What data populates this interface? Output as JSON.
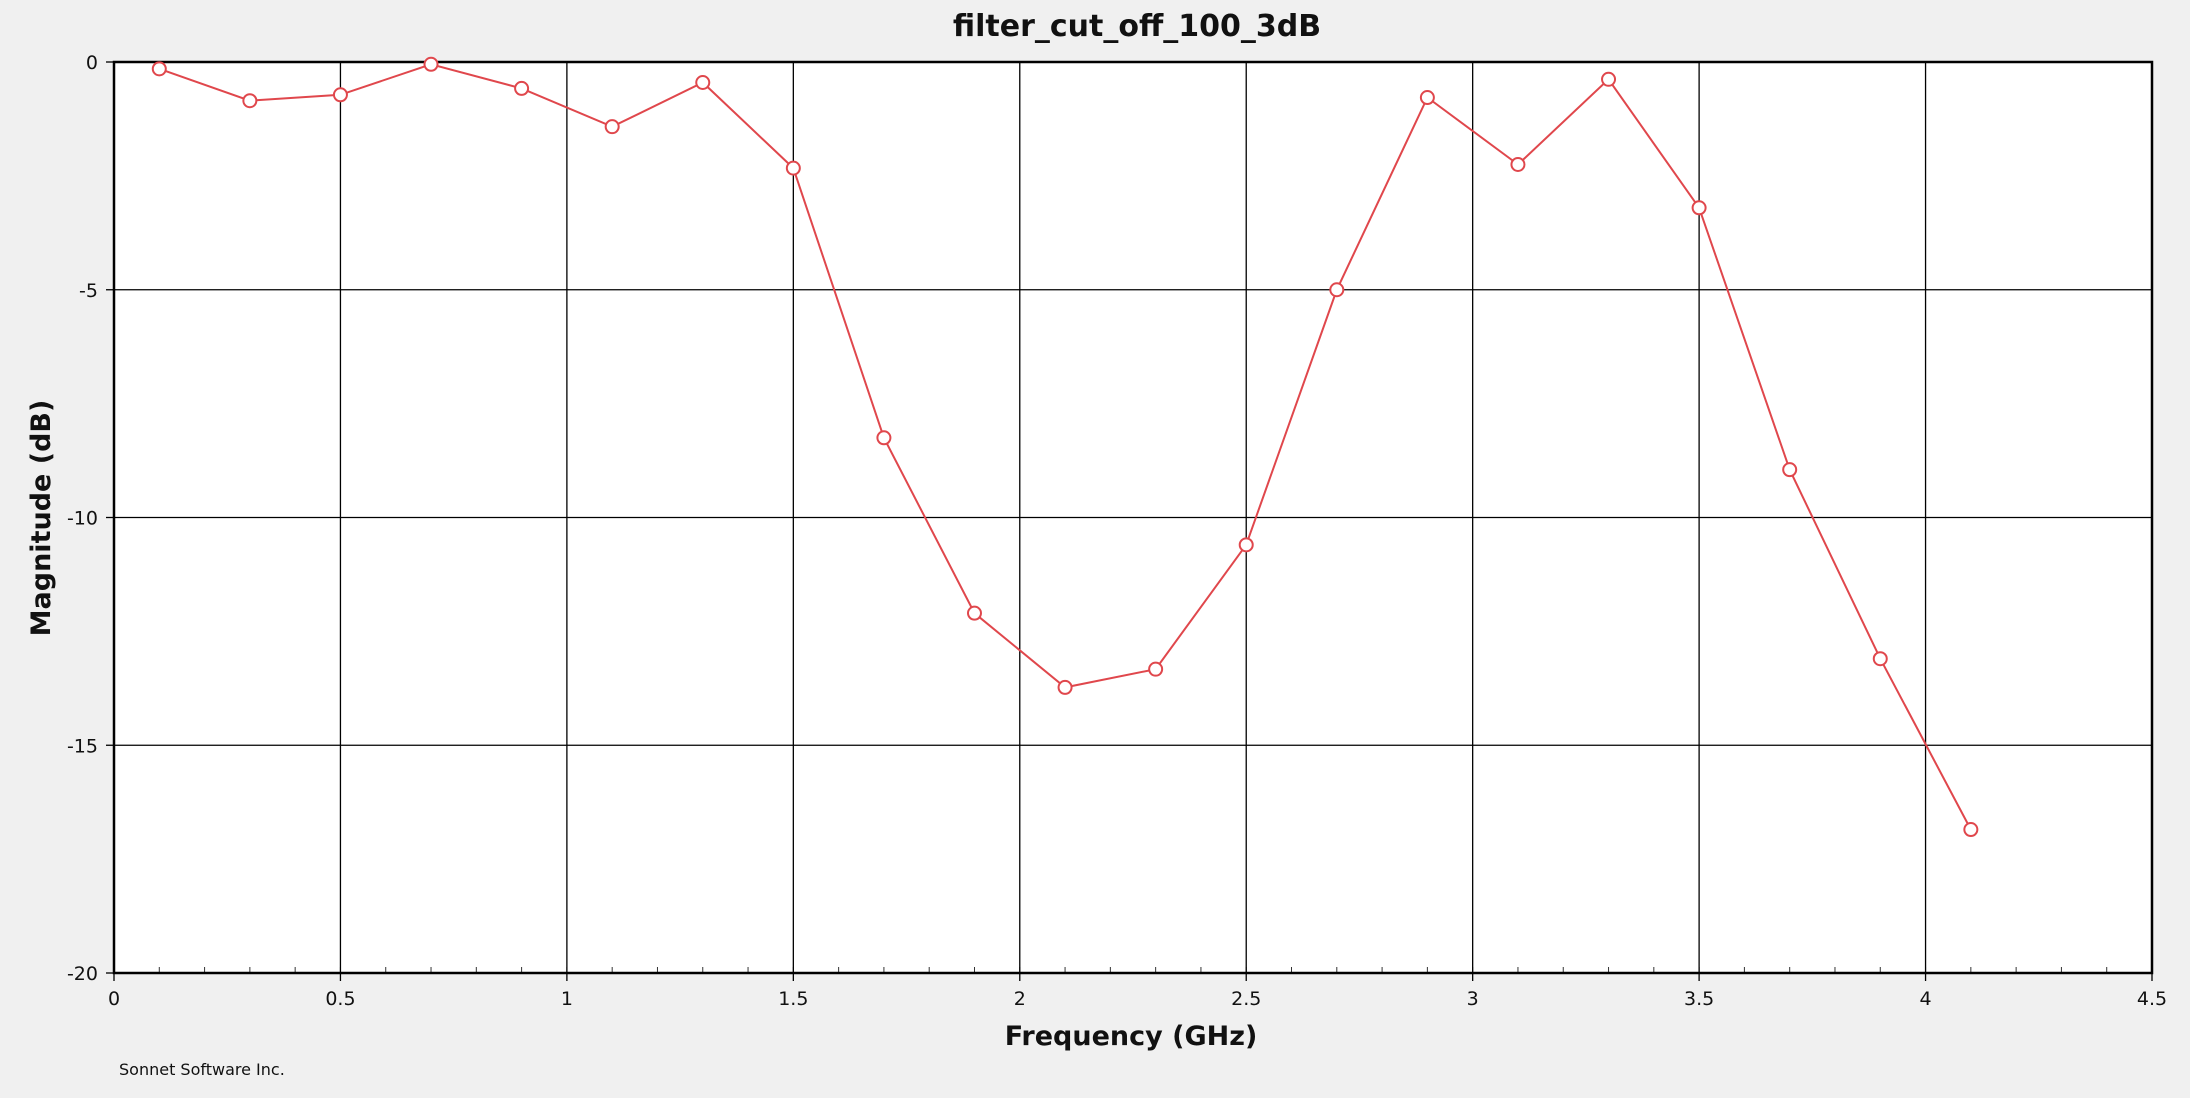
{
  "footer": {
    "credit": "Sonnet Software Inc."
  },
  "chart_data": {
    "type": "line",
    "title": "filter_cut_off_100_3dB",
    "xlabel": "Frequency (GHz)",
    "ylabel": "Magnitude (dB)",
    "xlim": [
      0,
      4.5
    ],
    "ylim": [
      -20,
      0
    ],
    "xticks": [
      0,
      0.5,
      1,
      1.5,
      2,
      2.5,
      3,
      3.5,
      4,
      4.5
    ],
    "xtick_labels": [
      "0",
      "0.5",
      "1",
      "1.5",
      "2",
      "2.5",
      "3",
      "3.5",
      "4",
      "4.5"
    ],
    "yticks": [
      0,
      -5,
      -10,
      -15,
      -20
    ],
    "ytick_labels": [
      "0",
      "-5",
      "-10",
      "-15",
      "-20"
    ],
    "grid": true,
    "series_color": "#e0474c",
    "series": [
      {
        "x": [
          0.1,
          0.3,
          0.5,
          0.7,
          0.9,
          1.1,
          1.3,
          1.5,
          1.7,
          1.9,
          2.1,
          2.3,
          2.5,
          2.7,
          2.9,
          3.1,
          3.3,
          3.5,
          3.7,
          3.9,
          4.1
        ],
        "values": [
          -0.15,
          -0.85,
          -0.72,
          -0.05,
          -0.58,
          -1.42,
          -0.45,
          -2.33,
          -8.25,
          -12.1,
          -13.73,
          -13.33,
          -10.6,
          -5.0,
          -0.78,
          -2.25,
          -0.38,
          -3.2,
          -8.95,
          -13.1,
          -16.85
        ]
      }
    ]
  }
}
